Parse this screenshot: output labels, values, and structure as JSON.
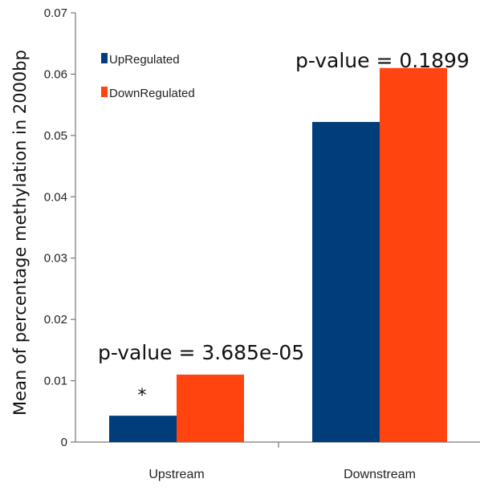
{
  "chart_data": {
    "type": "bar",
    "categories": [
      "Upstream",
      "Downstream"
    ],
    "series": [
      {
        "name": "UpRegulated",
        "values": [
          0.0043,
          0.0522
        ],
        "color": "#003d7a"
      },
      {
        "name": "DownRegulated",
        "values": [
          0.011,
          0.061
        ],
        "color": "#ff4410"
      }
    ],
    "title": "",
    "xlabel": "",
    "ylabel": "Mean of percentage methylation in 2000bp",
    "ylim": [
      0,
      0.07
    ],
    "yticks": [
      "0",
      "0.01",
      "0.02",
      "0.03",
      "0.04",
      "0.05",
      "0.06",
      "0.07"
    ],
    "grid": false,
    "legend_position": "top-left",
    "annotations": {
      "upstream_pvalue": "p-value = 3.685e-05",
      "downstream_pvalue": "p-value = 0.1899",
      "upstream_marker": "*"
    }
  }
}
